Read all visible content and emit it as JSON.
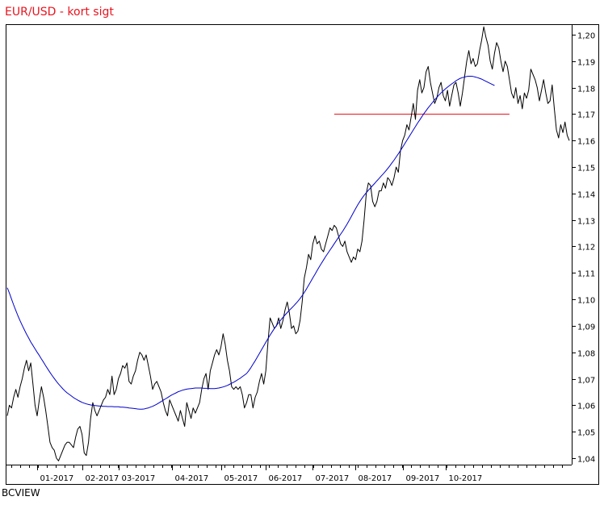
{
  "title": "EUR/USD - kort sigt",
  "source": "BCVIEW",
  "colors": {
    "price": "#000000",
    "moving_average": "#0000cc",
    "level": "#e8141e",
    "title": "#e8141e"
  },
  "chart_data": {
    "type": "line",
    "title": "EUR/USD - kort sigt",
    "xlabel": "",
    "ylabel": "",
    "ylim": [
      1.036,
      1.205
    ],
    "y_ticks": [
      1.04,
      1.05,
      1.06,
      1.07,
      1.08,
      1.09,
      1.1,
      1.11,
      1.12,
      1.13,
      1.14,
      1.15,
      1.16,
      1.17,
      1.18,
      1.19,
      1.2
    ],
    "x_tick_labels": [
      "01-2017",
      "02-2017",
      "03-2017",
      "04-2017",
      "05-2017",
      "06-2017",
      "07-2017",
      "08-2017",
      "09-2017",
      "10-2017"
    ],
    "x_tick_positions": [
      14,
      35,
      52,
      77,
      100,
      121,
      143,
      163,
      185,
      205
    ],
    "grid": false,
    "legend": "none",
    "horizontal_line": {
      "value": 1.17,
      "from": 153,
      "to": 235
    },
    "series": [
      {
        "key": "price",
        "values": [
          1.056,
          1.06,
          1.059,
          1.063,
          1.066,
          1.063,
          1.067,
          1.07,
          1.074,
          1.077,
          1.073,
          1.076,
          1.068,
          1.06,
          1.056,
          1.062,
          1.067,
          1.063,
          1.058,
          1.052,
          1.046,
          1.044,
          1.043,
          1.04,
          1.039,
          1.041,
          1.043,
          1.045,
          1.046,
          1.046,
          1.045,
          1.044,
          1.048,
          1.051,
          1.052,
          1.049,
          1.042,
          1.041,
          1.046,
          1.055,
          1.061,
          1.058,
          1.056,
          1.058,
          1.06,
          1.062,
          1.063,
          1.066,
          1.064,
          1.071,
          1.064,
          1.066,
          1.07,
          1.072,
          1.075,
          1.074,
          1.076,
          1.069,
          1.068,
          1.071,
          1.073,
          1.077,
          1.08,
          1.079,
          1.077,
          1.079,
          1.075,
          1.071,
          1.066,
          1.068,
          1.069,
          1.067,
          1.065,
          1.061,
          1.058,
          1.056,
          1.062,
          1.06,
          1.058,
          1.056,
          1.054,
          1.058,
          1.055,
          1.052,
          1.061,
          1.058,
          1.055,
          1.059,
          1.057,
          1.059,
          1.061,
          1.066,
          1.07,
          1.072,
          1.066,
          1.073,
          1.076,
          1.079,
          1.081,
          1.079,
          1.082,
          1.087,
          1.083,
          1.077,
          1.073,
          1.067,
          1.066,
          1.067,
          1.066,
          1.067,
          1.064,
          1.059,
          1.061,
          1.064,
          1.064,
          1.059,
          1.063,
          1.065,
          1.069,
          1.072,
          1.068,
          1.073,
          1.084,
          1.093,
          1.091,
          1.089,
          1.09,
          1.093,
          1.089,
          1.092,
          1.096,
          1.099,
          1.095,
          1.089,
          1.09,
          1.087,
          1.088,
          1.092,
          1.099,
          1.108,
          1.112,
          1.117,
          1.115,
          1.121,
          1.124,
          1.121,
          1.122,
          1.119,
          1.118,
          1.121,
          1.124,
          1.127,
          1.126,
          1.128,
          1.127,
          1.124,
          1.121,
          1.12,
          1.122,
          1.118,
          1.116,
          1.114,
          1.116,
          1.115,
          1.119,
          1.118,
          1.122,
          1.13,
          1.14,
          1.144,
          1.143,
          1.137,
          1.135,
          1.137,
          1.141,
          1.141,
          1.144,
          1.142,
          1.146,
          1.145,
          1.143,
          1.146,
          1.15,
          1.148,
          1.156,
          1.16,
          1.162,
          1.166,
          1.164,
          1.169,
          1.174,
          1.168,
          1.179,
          1.183,
          1.178,
          1.18,
          1.186,
          1.188,
          1.182,
          1.178,
          1.174,
          1.176,
          1.18,
          1.182,
          1.177,
          1.175,
          1.179,
          1.173,
          1.177,
          1.181,
          1.182,
          1.178,
          1.173,
          1.178,
          1.184,
          1.19,
          1.194,
          1.189,
          1.191,
          1.188,
          1.189,
          1.194,
          1.198,
          1.203,
          1.199,
          1.196,
          1.19,
          1.187,
          1.193,
          1.197,
          1.195,
          1.19,
          1.186,
          1.19,
          1.188,
          1.183,
          1.178,
          1.176,
          1.18,
          1.174,
          1.177,
          1.172,
          1.178,
          1.176,
          1.179,
          1.187,
          1.185,
          1.183,
          1.18,
          1.175,
          1.179,
          1.183,
          1.178,
          1.174,
          1.175,
          1.181,
          1.172,
          1.164,
          1.161,
          1.166,
          1.163,
          1.167,
          1.162,
          1.16
        ]
      },
      {
        "key": "moving_average",
        "values": [
          1.1044,
          1.1024,
          1.1001,
          1.0979,
          1.0958,
          1.0938,
          1.0919,
          1.0902,
          1.0885,
          1.0869,
          1.0854,
          1.0839,
          1.0826,
          1.0813,
          1.08,
          1.0788,
          1.0775,
          1.0762,
          1.0749,
          1.0736,
          1.0724,
          1.0712,
          1.0701,
          1.069,
          1.068,
          1.0671,
          1.0662,
          1.0654,
          1.0647,
          1.0641,
          1.0635,
          1.0629,
          1.0624,
          1.0619,
          1.0615,
          1.0611,
          1.0608,
          1.0605,
          1.0603,
          1.0601,
          1.06,
          1.0599,
          1.0598,
          1.0597,
          1.0597,
          1.0596,
          1.0596,
          1.0595,
          1.0595,
          1.0595,
          1.0594,
          1.0594,
          1.0594,
          1.0593,
          1.0593,
          1.0592,
          1.0591,
          1.059,
          1.0589,
          1.0588,
          1.0587,
          1.0586,
          1.0585,
          1.0585,
          1.0586,
          1.0588,
          1.059,
          1.0593,
          1.0596,
          1.06,
          1.0604,
          1.0609,
          1.0614,
          1.0619,
          1.0624,
          1.0629,
          1.0634,
          1.0639,
          1.0643,
          1.0647,
          1.0651,
          1.0654,
          1.0657,
          1.0659,
          1.0661,
          1.0662,
          1.0663,
          1.0664,
          1.0665,
          1.0665,
          1.0665,
          1.0665,
          1.0664,
          1.0664,
          1.0664,
          1.0663,
          1.0663,
          1.0663,
          1.0664,
          1.0665,
          1.0667,
          1.0669,
          1.0672,
          1.0675,
          1.0679,
          1.0683,
          1.0687,
          1.0692,
          1.0697,
          1.0702,
          1.0708,
          1.0714,
          1.072,
          1.073,
          1.0742,
          1.0755,
          1.0768,
          1.0782,
          1.0796,
          1.081,
          1.0824,
          1.0838,
          1.0852,
          1.0865,
          1.0878,
          1.089,
          1.0901,
          1.0912,
          1.0922,
          1.0932,
          1.0941,
          1.095,
          1.0959,
          1.0967,
          1.0975,
          1.0984,
          1.0993,
          1.1003,
          1.1014,
          1.1026,
          1.1039,
          1.1053,
          1.1067,
          1.1081,
          1.1095,
          1.1109,
          1.1123,
          1.1136,
          1.1149,
          1.1162,
          1.1174,
          1.1186,
          1.1198,
          1.121,
          1.1222,
          1.1234,
          1.1246,
          1.1258,
          1.1271,
          1.1284,
          1.1298,
          1.1313,
          1.1328,
          1.1343,
          1.1357,
          1.137,
          1.1382,
          1.1393,
          1.1403,
          1.1412,
          1.1421,
          1.143,
          1.1439,
          1.1448,
          1.1457,
          1.1466,
          1.1475,
          1.1484,
          1.1494,
          1.1504,
          1.1515,
          1.1526,
          1.1538,
          1.155,
          1.1562,
          1.1575,
          1.1588,
          1.1601,
          1.1614,
          1.1627,
          1.164,
          1.1653,
          1.1666,
          1.1678,
          1.169,
          1.1702,
          1.1713,
          1.1724,
          1.1734,
          1.1744,
          1.1754,
          1.1763,
          1.1772,
          1.178,
          1.1788,
          1.1795,
          1.1802,
          1.1808,
          1.1814,
          1.182,
          1.1826,
          1.1831,
          1.1835,
          1.1838,
          1.184,
          1.1842,
          1.1843,
          1.1843,
          1.1842,
          1.184,
          1.1838,
          1.1835,
          1.1832,
          1.1828,
          1.1824,
          1.182,
          1.1816,
          1.1812,
          1.1808
        ]
      }
    ]
  }
}
